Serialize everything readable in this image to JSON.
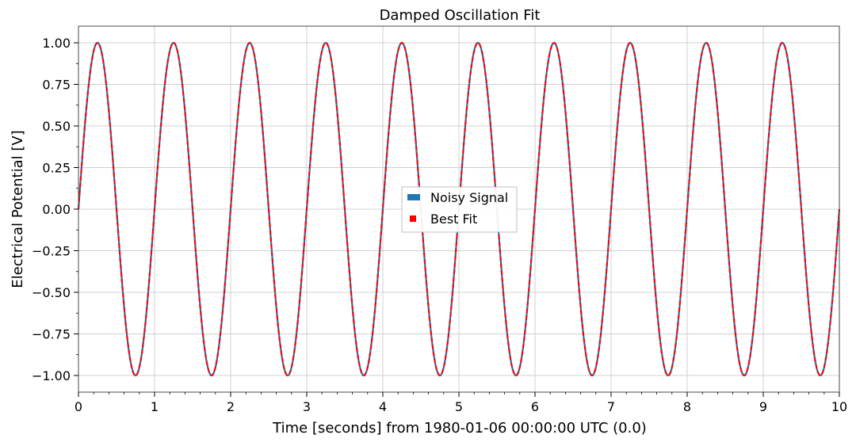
{
  "chart_data": {
    "type": "line",
    "title": "Damped Oscillation Fit",
    "xlabel": "Time [seconds] from 1980-01-06 00:00:00 UTC (0.0)",
    "ylabel": "Electrical Potential [V]",
    "xlim": [
      0,
      10
    ],
    "ylim": [
      -1.1,
      1.1
    ],
    "x_ticks": [
      0,
      1,
      2,
      3,
      4,
      5,
      6,
      7,
      8,
      9,
      10
    ],
    "x_tick_labels": [
      "0",
      "1",
      "2",
      "3",
      "4",
      "5",
      "6",
      "7",
      "8",
      "9",
      "10"
    ],
    "y_ticks": [
      -1.0,
      -0.75,
      -0.5,
      -0.25,
      0.0,
      0.25,
      0.5,
      0.75,
      1.0
    ],
    "y_tick_labels": [
      "−1.00",
      "−0.75",
      "−0.50",
      "−0.25",
      "0.00",
      "0.25",
      "0.50",
      "0.75",
      "1.00"
    ],
    "grid": true,
    "legend_position": "center",
    "legend": [
      "Noisy Signal",
      "Best Fit"
    ],
    "series": [
      {
        "name": "Noisy Signal",
        "color": "#1f77b4",
        "style": "solid",
        "function": "sine",
        "amplitude": 1.0,
        "frequency": 1.0,
        "phase": 0.0,
        "x_range": [
          0,
          10
        ]
      },
      {
        "name": "Best Fit",
        "color": "#ff0000",
        "style": "dashed",
        "function": "sine",
        "amplitude": 1.0,
        "frequency": 1.0,
        "phase": 0.0,
        "x_range": [
          0,
          10
        ]
      }
    ]
  }
}
